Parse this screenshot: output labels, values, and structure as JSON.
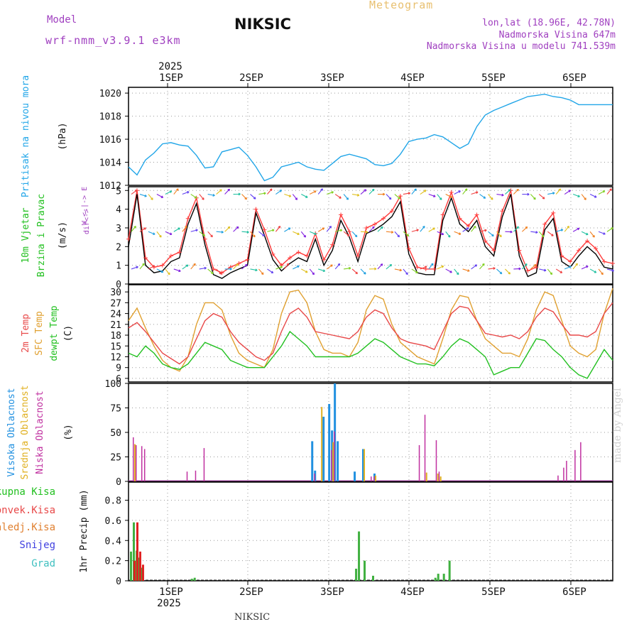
{
  "header": {
    "model_label": "Model",
    "model_name": "wrf-nmm_v3.9.1 e3km",
    "title": "NIKSIC",
    "subtitle": "Meteogram",
    "location": "lon,lat (18.96E, 42.78N)",
    "altitude": "Nadmorska Visina 647m",
    "model_altitude": "Nadmorska Visina u modelu 741.539m"
  },
  "footer_station": "NIKSIC",
  "credit": "made by Angel",
  "colors": {
    "pressure": "#22a6e8",
    "wind_speed": "#000000",
    "wind_gust": "#ff3b3b",
    "temp2m": "#e84848",
    "sfc_temp": "#e0a030",
    "dewpt": "#22c020",
    "cloud_high": "#2090e0",
    "cloud_mid": "#e0b020",
    "cloud_low": "#c030a0",
    "precip_total": "#40b040",
    "precip_conv": "#e02020",
    "precip_snow": "#4040e0"
  },
  "chart_data": [
    {
      "type": "line",
      "title": "Pritisak na nivou mora",
      "ylabel": "(hPa)",
      "ylim": [
        1012,
        1020.5
      ],
      "yticks": [
        "1012",
        "1014",
        "1016",
        "1018",
        "1020"
      ],
      "x_hours": [
        0,
        3,
        6,
        9,
        12,
        15,
        18,
        21,
        24,
        27,
        30,
        33,
        36,
        39,
        42,
        45,
        48,
        51,
        54,
        57,
        60,
        63,
        66,
        69,
        72,
        75,
        78,
        81,
        84,
        87,
        90,
        93,
        96,
        99,
        102,
        105,
        108,
        111,
        114,
        117,
        120,
        123,
        126,
        129,
        132,
        135,
        138,
        141,
        144,
        147,
        150,
        153,
        156,
        159,
        162,
        165,
        168,
        171
      ],
      "series": [
        {
          "name": "pressure",
          "values": [
            1013.6,
            1012.9,
            1014.2,
            1014.8,
            1015.6,
            1015.7,
            1015.5,
            1015.4,
            1014.6,
            1013.5,
            1013.6,
            1014.9,
            1015.1,
            1015.3,
            1014.6,
            1013.6,
            1012.4,
            1012.7,
            1013.6,
            1013.8,
            1014.0,
            1013.6,
            1013.4,
            1013.3,
            1013.9,
            1014.5,
            1014.7,
            1014.5,
            1014.3,
            1013.8,
            1013.7,
            1013.9,
            1014.7,
            1015.8,
            1016.0,
            1016.1,
            1016.4,
            1016.2,
            1015.7,
            1015.2,
            1015.6,
            1017.1,
            1018.1,
            1018.5,
            1018.8,
            1019.1,
            1019.4,
            1019.7,
            1019.8,
            1019.9,
            1019.7,
            1019.6,
            1019.4,
            1019.0,
            1019.0,
            1019.0,
            1019.0,
            1019.0
          ]
        }
      ]
    },
    {
      "type": "line",
      "title": "10m Vjetar Brzina i Pravac",
      "ylabel": "(m/s)",
      "ylim": [
        0,
        5.2
      ],
      "yticks": [
        "0",
        "1",
        "2",
        "3",
        "4",
        "5"
      ],
      "legend_top": "W <-|-> E",
      "legend_bottom": "dir<->",
      "series": [
        {
          "name": "wind speed",
          "values": [
            2.0,
            4.8,
            1.0,
            0.6,
            0.7,
            1.2,
            1.4,
            3.2,
            4.3,
            2.1,
            0.5,
            0.3,
            0.6,
            0.8,
            1.0,
            3.8,
            2.6,
            1.3,
            0.7,
            1.1,
            1.4,
            1.2,
            2.4,
            1.0,
            1.8,
            3.4,
            2.5,
            1.2,
            2.7,
            2.9,
            3.2,
            3.6,
            4.4,
            1.6,
            0.6,
            0.5,
            0.5,
            3.4,
            4.6,
            3.2,
            2.8,
            3.4,
            2.0,
            1.5,
            3.6,
            4.8,
            1.5,
            0.4,
            0.6,
            2.9,
            3.5,
            1.2,
            0.9,
            1.5,
            2.0,
            1.6,
            0.9,
            0.8
          ]
        },
        {
          "name": "gust",
          "values": [
            2.4,
            5.0,
            1.4,
            0.9,
            1.0,
            1.5,
            1.7,
            3.5,
            4.6,
            2.4,
            0.8,
            0.6,
            0.9,
            1.1,
            1.3,
            4.0,
            2.9,
            1.6,
            1.0,
            1.4,
            1.7,
            1.5,
            2.7,
            1.3,
            2.1,
            3.7,
            2.8,
            1.5,
            3.0,
            3.2,
            3.5,
            3.9,
            4.7,
            1.9,
            0.9,
            0.8,
            0.8,
            3.7,
            4.9,
            3.5,
            3.1,
            3.7,
            2.3,
            1.8,
            3.9,
            5.0,
            1.8,
            0.7,
            0.9,
            3.2,
            3.8,
            1.5,
            1.2,
            1.8,
            2.3,
            1.9,
            1.2,
            1.1
          ]
        }
      ]
    },
    {
      "type": "line",
      "title": "2m Temp / SFC Temp / dewpt Temp",
      "ylabel": "(C)",
      "ylim": [
        5,
        32
      ],
      "yticks": [
        "6",
        "9",
        "12",
        "15",
        "18",
        "21",
        "24",
        "27",
        "30"
      ],
      "series": [
        {
          "name": "2m Temp",
          "values": [
            20,
            21.5,
            19,
            16,
            13,
            11.5,
            10,
            12,
            17,
            22,
            24,
            23,
            19,
            16,
            14,
            12,
            11,
            13,
            19,
            24,
            25.5,
            23,
            19,
            18.5,
            18,
            17.5,
            17,
            19,
            23,
            25,
            24,
            20,
            17,
            16,
            15.5,
            15,
            14,
            19,
            24,
            26,
            25.5,
            22,
            18.5,
            18,
            17.5,
            18,
            17,
            19,
            23,
            25.5,
            24.5,
            21,
            18,
            18,
            17.5,
            19,
            24,
            27
          ]
        },
        {
          "name": "SFC Temp",
          "values": [
            22,
            25.5,
            20,
            15,
            11,
            9,
            8,
            12,
            21,
            27,
            27,
            25,
            18,
            13,
            11,
            10,
            9,
            14,
            24,
            30,
            30.5,
            27,
            19,
            14,
            13,
            13,
            12,
            16,
            25,
            29,
            28,
            21,
            16,
            14,
            12,
            11,
            10,
            17,
            25,
            29,
            28.5,
            22,
            17,
            15,
            13,
            13,
            12,
            17,
            25,
            30,
            29,
            22,
            15,
            13,
            12,
            14,
            24,
            31
          ]
        },
        {
          "name": "dewpt Temp",
          "values": [
            13,
            12,
            15,
            13,
            10,
            9,
            8.5,
            10,
            13,
            16,
            15,
            14,
            11,
            10,
            9,
            9,
            9,
            12,
            15,
            19,
            17,
            15,
            12,
            12,
            12,
            12,
            12,
            13,
            15,
            17,
            16,
            14,
            12,
            11,
            10,
            10,
            9.5,
            12,
            15,
            17,
            16,
            14,
            12,
            7,
            8,
            9,
            9,
            13,
            17,
            16.5,
            14,
            12,
            9,
            7,
            6,
            10,
            14,
            11
          ]
        }
      ]
    },
    {
      "type": "bar",
      "title": "Visoka / Srednja / Niska Oblacnost",
      "ylabel": "(%)",
      "ylim": [
        0,
        100
      ],
      "yticks": [
        "0",
        "25",
        "50",
        "75",
        "100"
      ],
      "series": [
        {
          "name": "Visoka Oblacnost",
          "points": [
            [
              65,
              41
            ],
            [
              66,
              11
            ],
            [
              69,
              66
            ],
            [
              71,
              79
            ],
            [
              72,
              52
            ],
            [
              73,
              100
            ],
            [
              74,
              41
            ],
            [
              80,
              10
            ],
            [
              83,
              33
            ],
            [
              87,
              8
            ]
          ]
        },
        {
          "name": "Srednja Oblacnost",
          "points": [
            [
              2,
              38
            ],
            [
              68,
              76
            ],
            [
              72,
              40
            ],
            [
              83,
              33
            ],
            [
              87,
              6
            ],
            [
              105,
              9
            ],
            [
              109,
              8
            ],
            [
              110,
              5
            ]
          ]
        },
        {
          "name": "Niska Oblacnost",
          "points": [
            [
              1,
              45
            ],
            [
              2,
              37
            ],
            [
              4,
              36
            ],
            [
              5,
              33
            ],
            [
              20,
              10
            ],
            [
              23,
              11
            ],
            [
              26,
              34
            ],
            [
              65,
              8
            ],
            [
              71,
              32
            ],
            [
              72,
              51
            ],
            [
              85,
              5
            ],
            [
              86,
              5
            ],
            [
              102,
              37
            ],
            [
              104,
              68
            ],
            [
              108,
              42
            ],
            [
              109,
              10
            ],
            [
              151,
              6
            ],
            [
              153,
              14
            ],
            [
              154,
              21
            ],
            [
              157,
              32
            ],
            [
              159,
              40
            ]
          ]
        }
      ]
    },
    {
      "type": "bar",
      "title": "1hr Precip",
      "ylabel": "1hr Precip (mm)",
      "ylim": [
        0,
        0.98
      ],
      "yticks": [
        "0",
        "0.2",
        "0.4",
        "0.6",
        "0.8"
      ],
      "legend": [
        "Ukupna Kisa",
        "Konvek.Kisa",
        "Zaledj.Kisa",
        "Snijeg",
        "Grad"
      ],
      "series": [
        {
          "name": "Ukupna Kisa",
          "points": [
            [
              0.5,
              0.29
            ],
            [
              1.5,
              0.58
            ],
            [
              2.5,
              0.3
            ],
            [
              3.5,
              0.23
            ],
            [
              4.5,
              0.13
            ],
            [
              22,
              0.02
            ],
            [
              23,
              0.03
            ],
            [
              80,
              0.12
            ],
            [
              81,
              0.49
            ],
            [
              83,
              0.2
            ],
            [
              86,
              0.05
            ],
            [
              108,
              0.03
            ],
            [
              109,
              0.07
            ],
            [
              111,
              0.07
            ],
            [
              113,
              0.2
            ]
          ]
        },
        {
          "name": "Konvek.Kisa",
          "points": [
            [
              1,
              0.2
            ],
            [
              2,
              0.58
            ],
            [
              3,
              0.29
            ],
            [
              4,
              0.16
            ]
          ]
        }
      ]
    }
  ],
  "panel_labels": [
    {
      "lines": [
        "Pritisak na nivou mora"
      ],
      "colors": [
        "#22a6e8"
      ],
      "unit": "(hPa)"
    },
    {
      "lines": [
        "10m Vjetar",
        "Brzina i Pravac"
      ],
      "colors": [
        "#22c020",
        "#22c020"
      ],
      "unit": "(m/s)"
    },
    {
      "lines": [
        "2m Temp",
        "SFC Temp",
        "dewpt Temp"
      ],
      "colors": [
        "#e84848",
        "#e0a030",
        "#22c020"
      ],
      "unit": "(C)"
    },
    {
      "lines": [
        "Visoka Oblacnost",
        "Srednja Oblacnost",
        "Niska Oblacnost"
      ],
      "colors": [
        "#2090e0",
        "#e0b020",
        "#c030a0"
      ],
      "unit": "(%)"
    }
  ],
  "precip_legend_colors": [
    "#22c020",
    "#e84848",
    "#e08030",
    "#4040e0",
    "#40c0c0"
  ],
  "time_axis": {
    "top_year": "2025",
    "bottom_year": "2025",
    "days": [
      "1SEP",
      "2SEP",
      "3SEP",
      "4SEP",
      "5SEP",
      "6SEP"
    ]
  }
}
